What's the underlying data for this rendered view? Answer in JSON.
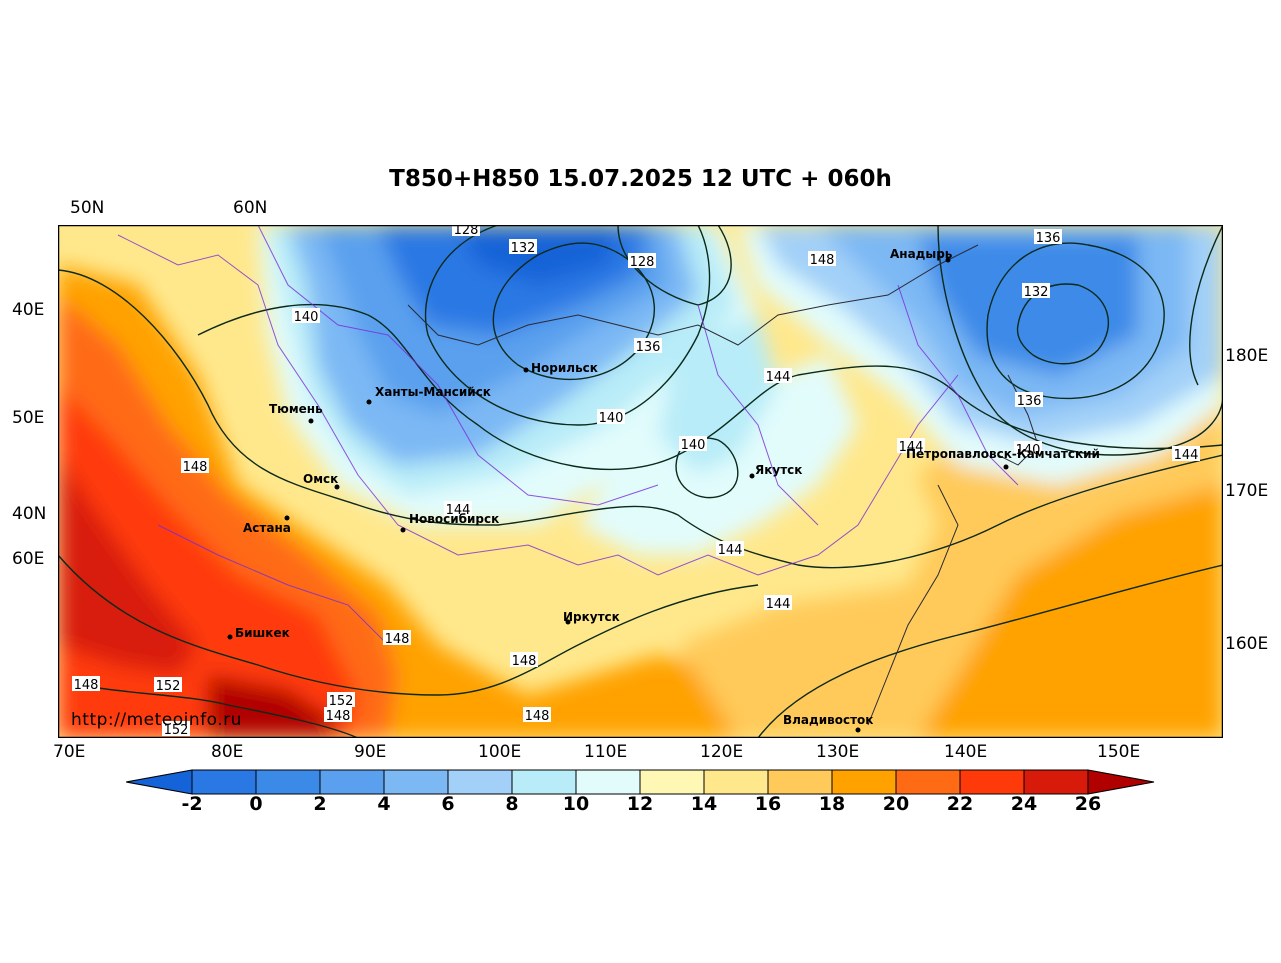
{
  "title": "T850+H850 15.07.2025 12 UTC + 060h",
  "credit": "http://meteoinfo.ru",
  "axis_labels": {
    "top": [
      "50N",
      "60N"
    ],
    "left": [
      "40E",
      "50E",
      "40N",
      "60E"
    ],
    "right": [
      "180E",
      "170E",
      "160E"
    ],
    "bottom": [
      "70E",
      "80E",
      "90E",
      "100E",
      "110E",
      "120E",
      "130E",
      "140E",
      "150E"
    ]
  },
  "cities": [
    {
      "name": "Норильск"
    },
    {
      "name": "Ханты-Мансийск"
    },
    {
      "name": "Тюмень"
    },
    {
      "name": "Омск"
    },
    {
      "name": "Астана"
    },
    {
      "name": "Новосибирск"
    },
    {
      "name": "Якутск"
    },
    {
      "name": "Иркутск"
    },
    {
      "name": "Бишкек"
    },
    {
      "name": "Владивосток"
    },
    {
      "name": "Анадырь"
    },
    {
      "name": "Петропавловск-Камчатский"
    }
  ],
  "contour_labels": [
    "128",
    "132",
    "128",
    "148",
    "136",
    "132",
    "140",
    "136",
    "144",
    "140",
    "136",
    "140",
    "144",
    "140",
    "144",
    "144",
    "148",
    "144",
    "144",
    "148",
    "148",
    "148",
    "152",
    "152",
    "148",
    "152",
    "148",
    "148",
    "144"
  ],
  "colorbar": {
    "labels": [
      "-2",
      "0",
      "2",
      "4",
      "6",
      "8",
      "10",
      "12",
      "14",
      "16",
      "18",
      "20",
      "22",
      "24",
      "26"
    ],
    "colors": [
      "#1463d8",
      "#2a78e4",
      "#3c8ae8",
      "#5aa0ee",
      "#7cb8f4",
      "#a2d0f8",
      "#b8ecf8",
      "#e2fcfc",
      "#fff8b4",
      "#ffe88c",
      "#ffca5a",
      "#ffa200",
      "#ff6a14",
      "#ff3a0a",
      "#d81a0a",
      "#b00000"
    ]
  }
}
